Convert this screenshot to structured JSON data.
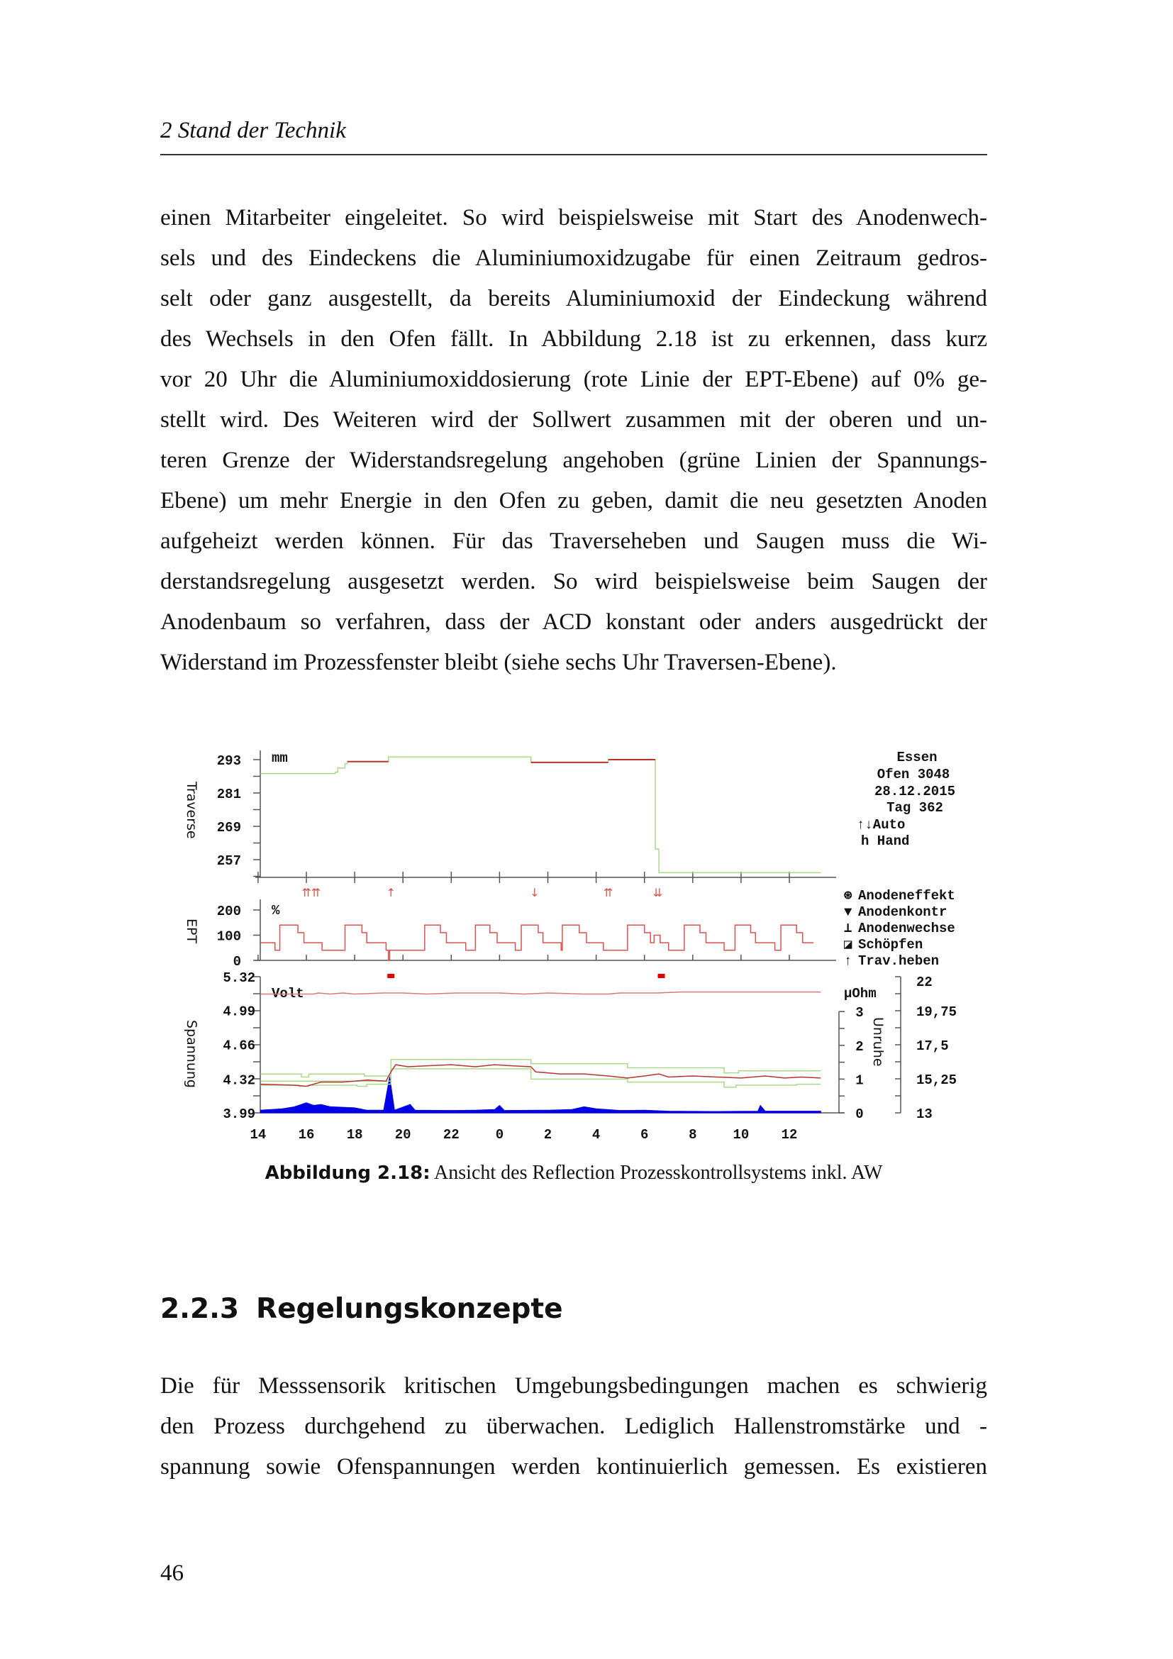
{
  "header": {
    "running_title": "2  Stand der Technik"
  },
  "paragraph1": [
    "einen Mitarbeiter eingeleitet. So wird beispielsweise mit Start des Anodenwech-",
    "sels und des Eindeckens die Aluminiumoxidzugabe für einen Zeitraum gedros-",
    "selt oder ganz ausgestellt, da bereits Aluminiumoxid der Eindeckung während",
    "des Wechsels in den Ofen fällt. In Abbildung 2.18 ist zu erkennen, dass kurz",
    "vor 20 Uhr die Aluminiumoxiddosierung (rote Linie der EPT-Ebene) auf 0% ge-",
    "stellt wird. Des Weiteren wird der Sollwert zusammen mit der oberen und un-",
    "teren Grenze der Widerstandsregelung angehoben (grüne Linien der Spannungs-",
    "Ebene) um mehr Energie in den Ofen zu geben, damit die neu gesetzten Anoden",
    "aufgeheizt werden können. Für das Traverseheben und Saugen muss die Wi-",
    "derstandsregelung ausgesetzt werden. So wird beispielsweise beim Saugen der",
    "Anodenbaum so verfahren, dass der ACD konstant oder anders ausgedrückt der",
    "Widerstand im Prozessfenster bleibt (siehe sechs Uhr Traversen-Ebene)."
  ],
  "figure": {
    "caption_label": "Abbildung 2.18:",
    "caption_text": " Ansicht des Reflection Prozesskontrollsystems inkl. AW"
  },
  "section": {
    "number": "2.2.3",
    "title": "Regelungskonzepte"
  },
  "paragraph2": [
    "Die für Messsensorik kritischen Umgebungsbedingungen machen es schwierig",
    "den Prozess durchgehend zu überwachen. Lediglich Hallenstromstärke und -",
    "spannung sowie Ofenspannungen werden kontinuierlich gemessen. Es existieren"
  ],
  "page_number": "46",
  "chart_data": {
    "type": "line",
    "x_tick_labels": [
      "16",
      "18",
      "20",
      "22",
      "0",
      "2",
      "4",
      "6",
      "8",
      "10",
      "12",
      "14"
    ],
    "x_ticks": [
      16,
      18,
      20,
      22,
      0,
      2,
      4,
      6,
      8,
      10,
      12,
      14
    ],
    "x_unit": "clock hour",
    "info": {
      "site": "Essen",
      "furnace": "Ofen   3048",
      "date": "28.12.2015",
      "day": "Tag 362",
      "auto": "↑↓Auto",
      "hand": "h Hand"
    },
    "legend": [
      {
        "symbol": "⊛",
        "label": "Anodeneffekt"
      },
      {
        "symbol": "▼",
        "label": "Anodenkontr"
      },
      {
        "symbol": "⊥",
        "label": "Anodenwechse"
      },
      {
        "symbol": "◪",
        "label": "Schöpfen"
      },
      {
        "symbol": "↑",
        "label": "Trav.heben"
      }
    ],
    "colors": {
      "green": "#a9d98b",
      "dark_red": "#b8332b",
      "red": "#d9534f",
      "voltage": "#d77a72",
      "blue": "#0000e6",
      "axis": "#555555"
    },
    "panels": {
      "traverse": {
        "ylabel": "Traverse",
        "unit": "mm",
        "ytick_labels": [
          "293",
          "281",
          "269",
          "257"
        ],
        "yticks": [
          293,
          281,
          269,
          257
        ],
        "series": [
          {
            "color": "green",
            "step": true,
            "points": [
              [
                14.1,
                288
              ],
              [
                17.2,
                288.5
              ],
              [
                17.3,
                290
              ],
              [
                17.6,
                291.5
              ],
              [
                17.7,
                292.3
              ],
              [
                19.4,
                294
              ],
              [
                1.3,
                292
              ],
              [
                4.5,
                293
              ],
              [
                6.45,
                260.8
              ],
              [
                6.6,
                252.3
              ],
              [
                13.3,
                252.3
              ]
            ]
          },
          {
            "color": "dark_red",
            "step": true,
            "points": [
              [
                17.7,
                292.3
              ],
              [
                19.4,
                292.3
              ]
            ]
          },
          {
            "color": "dark_red",
            "step": true,
            "points": [
              [
                1.3,
                292.0
              ],
              [
                4.5,
                292.0
              ]
            ]
          },
          {
            "color": "dark_red",
            "step": true,
            "points": [
              [
                4.5,
                293.0
              ],
              [
                6.45,
                293.0
              ]
            ]
          }
        ]
      },
      "ept": {
        "ylabel": "EPT",
        "unit": "%",
        "ytick_labels": [
          "200",
          "100",
          "0"
        ],
        "yticks": [
          200,
          100,
          0
        ],
        "series": [
          {
            "color": "red",
            "step": true,
            "points": [
              [
                14.1,
                70
              ],
              [
                14.7,
                40
              ],
              [
                14.9,
                140
              ],
              [
                15.65,
                110
              ],
              [
                15.9,
                70
              ],
              [
                16.65,
                40
              ],
              [
                17.6,
                140
              ],
              [
                18.3,
                110
              ],
              [
                18.5,
                70
              ],
              [
                19.3,
                40
              ],
              [
                19.4,
                0
              ],
              [
                19.45,
                40
              ],
              [
                20.9,
                140
              ],
              [
                21.55,
                110
              ],
              [
                21.8,
                70
              ],
              [
                22.6,
                40
              ],
              [
                23.0,
                140
              ],
              [
                23.6,
                110
              ],
              [
                23.9,
                70
              ],
              [
                0.65,
                40
              ],
              [
                0.9,
                140
              ],
              [
                1.6,
                110
              ],
              [
                1.8,
                70
              ],
              [
                2.55,
                40
              ],
              [
                2.6,
                140
              ],
              [
                3.3,
                110
              ],
              [
                3.6,
                70
              ],
              [
                4.3,
                40
              ],
              [
                5.3,
                140
              ],
              [
                6.0,
                110
              ],
              [
                6.25,
                70
              ],
              [
                6.4,
                100
              ],
              [
                6.65,
                70
              ],
              [
                7.0,
                40
              ],
              [
                7.65,
                140
              ],
              [
                8.3,
                110
              ],
              [
                8.55,
                70
              ],
              [
                9.3,
                40
              ],
              [
                9.75,
                140
              ],
              [
                10.4,
                110
              ],
              [
                10.6,
                70
              ],
              [
                11.4,
                40
              ],
              [
                11.65,
                140
              ],
              [
                12.3,
                110
              ],
              [
                12.55,
                70
              ],
              [
                13.0,
                70
              ]
            ]
          }
        ],
        "events_above": [
          {
            "symbol": "⇈⇈",
            "t": 16.2
          },
          {
            "symbol": "↑",
            "t": 19.5
          },
          {
            "symbol": "↓",
            "t": 1.45
          },
          {
            "symbol": "⇈",
            "t": 4.5
          },
          {
            "symbol": "⇊",
            "t": 6.55
          }
        ],
        "events_below": [
          {
            "type": "Anodenwechse",
            "t": 19.5
          },
          {
            "type": "Schöpfen",
            "t": 6.7
          }
        ]
      },
      "spannung": {
        "ylabel": "Spannung",
        "unit": "Volt",
        "ytick_labels": [
          "5.32",
          "4.99",
          "4.66",
          "4.32",
          "3.99"
        ],
        "yticks": [
          5.32,
          4.99,
          4.66,
          4.32,
          3.99
        ],
        "right_inner": {
          "label": "Unruhe",
          "unit": "µOhm",
          "ytick_labels": [
            "3",
            "2",
            "1",
            "0"
          ],
          "yticks": [
            3,
            2,
            1,
            0
          ]
        },
        "right_outer": {
          "ytick_labels": [
            "22",
            "19,75",
            "17,5",
            "15,25",
            "13"
          ],
          "yticks": [
            22,
            19.75,
            17.5,
            15.25,
            13
          ]
        },
        "series": [
          {
            "name_hidden": "voltage",
            "color": "voltage",
            "points": [
              [
                14.1,
                5.15
              ],
              [
                16.3,
                5.15
              ],
              [
                16.5,
                5.16
              ],
              [
                17,
                5.15
              ],
              [
                17.5,
                5.16
              ],
              [
                18,
                5.15
              ],
              [
                19.2,
                5.16
              ],
              [
                20,
                5.16
              ],
              [
                21,
                5.15
              ],
              [
                22.2,
                5.16
              ],
              [
                23,
                5.16
              ],
              [
                0,
                5.16
              ],
              [
                1,
                5.15
              ],
              [
                2,
                5.16
              ],
              [
                3.5,
                5.15
              ],
              [
                4.5,
                5.15
              ],
              [
                5,
                5.16
              ],
              [
                6.5,
                5.16
              ],
              [
                7.5,
                5.17
              ],
              [
                9,
                5.17
              ],
              [
                10.7,
                5.17
              ],
              [
                13.3,
                5.17
              ]
            ]
          },
          {
            "color": "green",
            "step": true,
            "points": [
              [
                14.1,
                4.37
              ],
              [
                15.8,
                4.34
              ],
              [
                16.1,
                4.37
              ],
              [
                18.4,
                4.35
              ],
              [
                19.5,
                4.51
              ],
              [
                1.3,
                4.47
              ],
              [
                5.3,
                4.43
              ],
              [
                9.3,
                4.38
              ],
              [
                9.9,
                4.4
              ],
              [
                13.3,
                4.4
              ]
            ]
          },
          {
            "color": "green",
            "step": true,
            "points": [
              [
                14.1,
                4.3
              ],
              [
                19.5,
                4.3
              ]
            ]
          },
          {
            "color": "green",
            "step": true,
            "points": [
              [
                14.1,
                4.26
              ],
              [
                15.7,
                4.25
              ],
              [
                16.1,
                4.26
              ],
              [
                18.1,
                4.25
              ],
              [
                18.5,
                4.27
              ],
              [
                19.5,
                4.42
              ],
              [
                1.3,
                4.32
              ],
              [
                5.3,
                4.29
              ],
              [
                9.3,
                4.24
              ],
              [
                9.8,
                4.26
              ],
              [
                12.3,
                4.27
              ],
              [
                13.3,
                4.27
              ]
            ]
          },
          {
            "color": "dark_red",
            "points": [
              [
                14.1,
                4.27
              ],
              [
                15.5,
                4.26
              ],
              [
                16,
                4.25
              ],
              [
                16.6,
                4.29
              ],
              [
                17.5,
                4.29
              ],
              [
                18.5,
                4.31
              ],
              [
                19.3,
                4.3
              ],
              [
                19.5,
                4.39
              ],
              [
                19.7,
                4.46
              ],
              [
                20.2,
                4.44
              ],
              [
                21,
                4.45
              ],
              [
                22,
                4.46
              ],
              [
                23,
                4.44
              ],
              [
                23.8,
                4.46
              ],
              [
                0.5,
                4.45
              ],
              [
                1.3,
                4.44
              ],
              [
                1.5,
                4.39
              ],
              [
                2.5,
                4.37
              ],
              [
                3.5,
                4.37
              ],
              [
                4.5,
                4.35
              ],
              [
                5.3,
                4.33
              ],
              [
                6,
                4.35
              ],
              [
                6.6,
                4.37
              ],
              [
                7,
                4.34
              ],
              [
                8,
                4.35
              ],
              [
                9,
                4.34
              ],
              [
                10,
                4.33
              ],
              [
                11,
                4.35
              ],
              [
                11.8,
                4.33
              ],
              [
                12.5,
                4.34
              ],
              [
                13.3,
                4.33
              ]
            ]
          }
        ],
        "unruhe_area": {
          "color": "blue",
          "points": [
            [
              14.1,
              0.08
            ],
            [
              15,
              0.12
            ],
            [
              15.5,
              0.18
            ],
            [
              16,
              0.3
            ],
            [
              16.3,
              0.22
            ],
            [
              16.6,
              0.25
            ],
            [
              17,
              0.18
            ],
            [
              18,
              0.15
            ],
            [
              18.5,
              0.08
            ],
            [
              19.2,
              0.08
            ],
            [
              19.45,
              1.07
            ],
            [
              19.65,
              0.08
            ],
            [
              20.3,
              0.25
            ],
            [
              20.5,
              0.08
            ],
            [
              22,
              0.07
            ],
            [
              23,
              0.08
            ],
            [
              23.8,
              0.1
            ],
            [
              0,
              0.22
            ],
            [
              0.2,
              0.07
            ],
            [
              2,
              0.08
            ],
            [
              3,
              0.1
            ],
            [
              3.5,
              0.18
            ],
            [
              4,
              0.12
            ],
            [
              5,
              0.07
            ],
            [
              6,
              0.08
            ],
            [
              7,
              0.05
            ],
            [
              9,
              0.04
            ],
            [
              10.7,
              0.05
            ],
            [
              10.8,
              0.22
            ],
            [
              11,
              0.05
            ],
            [
              13.3,
              0.05
            ]
          ]
        }
      }
    }
  }
}
